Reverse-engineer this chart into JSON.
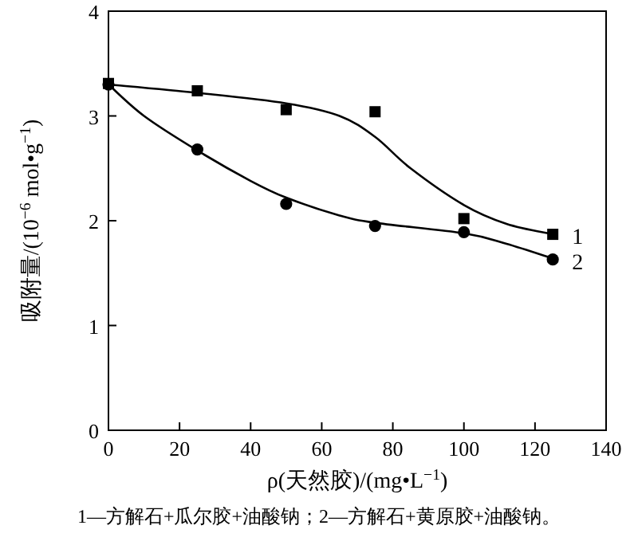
{
  "chart_data": {
    "type": "scatter",
    "xlabel": "ρ(天然胶)/(mg•L$^{−1}$)",
    "ylabel": "吸附量/(10$^{−6}$ mol•g$^{−1}$)",
    "xlim": [
      0,
      140
    ],
    "ylim": [
      0,
      4
    ],
    "xticks": [
      0,
      20,
      40,
      60,
      80,
      100,
      120,
      140
    ],
    "yticks": [
      0,
      1,
      2,
      3,
      4
    ],
    "grid": false,
    "annotations": [
      "1—方解石+瓜尔胶+油酸钠；2—方解石+黄原胶+油酸钠。"
    ],
    "series": [
      {
        "name": "1",
        "marker": "square",
        "color": "#000000",
        "x": [
          0,
          25,
          50,
          75,
          100,
          125
        ],
        "values": [
          3.31,
          3.24,
          3.06,
          3.04,
          2.02,
          1.87
        ]
      },
      {
        "name": "2",
        "marker": "circle",
        "color": "#000000",
        "x": [
          0,
          25,
          50,
          75,
          100,
          125
        ],
        "values": [
          3.3,
          2.68,
          2.16,
          1.95,
          1.89,
          1.63
        ]
      },
      {
        "type": "line",
        "marker": "none",
        "color": "#000000",
        "x": [
          0,
          25,
          50,
          65,
          75,
          85,
          100,
          112,
          125
        ],
        "values": [
          3.3,
          3.22,
          3.12,
          3.0,
          2.8,
          2.5,
          2.15,
          1.97,
          1.87
        ]
      },
      {
        "type": "line",
        "marker": "none",
        "color": "#000000",
        "x": [
          0,
          10,
          25,
          40,
          50,
          65,
          75,
          100,
          112,
          125
        ],
        "values": [
          3.3,
          3.0,
          2.67,
          2.38,
          2.22,
          2.05,
          1.98,
          1.88,
          1.78,
          1.64
        ]
      }
    ]
  }
}
